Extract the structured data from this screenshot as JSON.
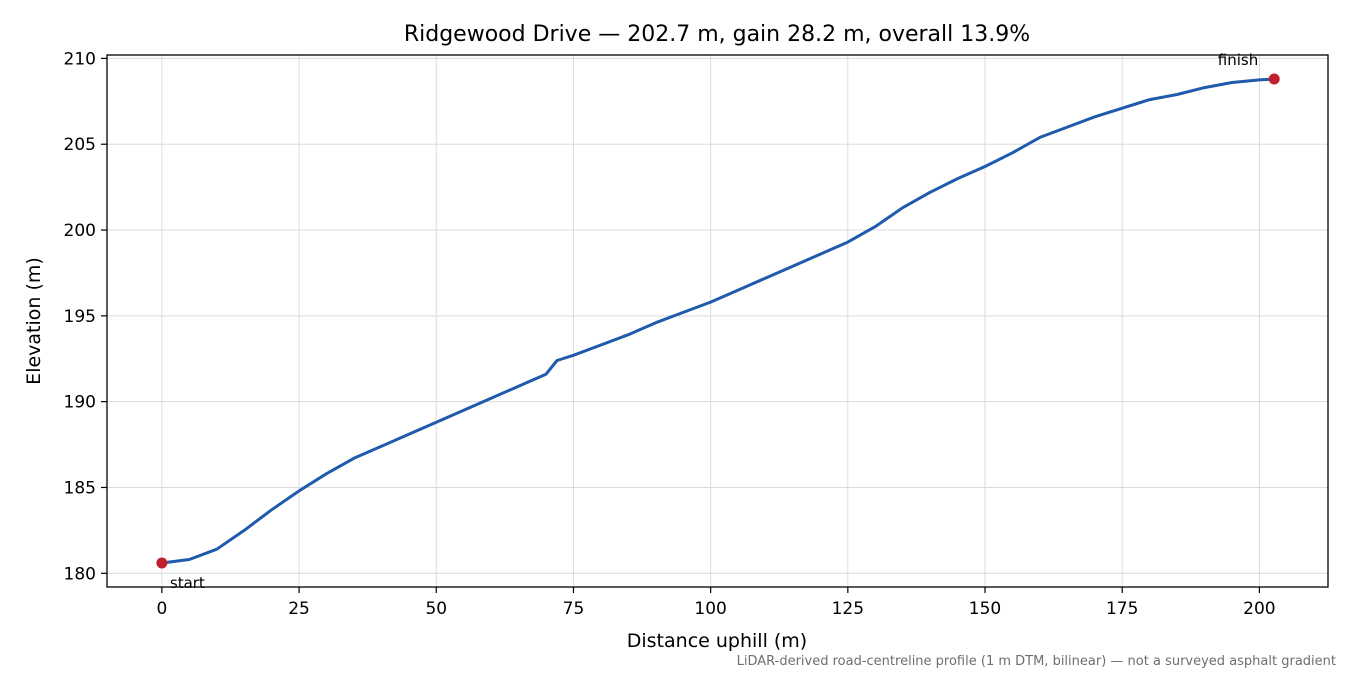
{
  "chart_data": {
    "type": "line",
    "title": "Ridgewood Drive — 202.7 m, gain 28.2 m, overall 13.9%",
    "xlabel": "Distance uphill (m)",
    "ylabel": "Elevation (m)",
    "xlim": [
      -10,
      212.5
    ],
    "ylim": [
      179.2,
      210.2
    ],
    "xticks": [
      0,
      25,
      50,
      75,
      100,
      125,
      150,
      175,
      200
    ],
    "yticks": [
      180,
      185,
      190,
      195,
      200,
      205,
      210
    ],
    "grid": true,
    "series": [
      {
        "color": "#1f5aad",
        "x": [
          0,
          5,
          10,
          15,
          20,
          25,
          30,
          35,
          40,
          45,
          50,
          55,
          60,
          65,
          70,
          72,
          75,
          80,
          85,
          90,
          95,
          100,
          105,
          110,
          115,
          120,
          125,
          130,
          135,
          140,
          145,
          150,
          155,
          160,
          165,
          170,
          175,
          180,
          185,
          190,
          195,
          200,
          202.7
        ],
        "y": [
          180.6,
          180.8,
          181.4,
          182.5,
          183.7,
          184.8,
          185.8,
          186.7,
          187.4,
          188.1,
          188.8,
          189.5,
          190.2,
          190.9,
          191.6,
          192.4,
          192.7,
          193.3,
          193.9,
          194.6,
          195.2,
          195.8,
          196.5,
          197.2,
          197.9,
          198.6,
          199.3,
          200.2,
          201.3,
          202.2,
          203.0,
          203.7,
          204.5,
          205.4,
          206.0,
          206.6,
          207.1,
          207.6,
          207.9,
          208.3,
          208.6,
          208.75,
          208.8
        ]
      }
    ],
    "markers": [
      {
        "x": 0,
        "y": 180.6,
        "label": "start",
        "color": "#c0202a"
      },
      {
        "x": 202.7,
        "y": 208.8,
        "label": "finish",
        "color": "#c0202a"
      }
    ],
    "footnote": "LiDAR-derived road-centreline profile (1 m DTM, bilinear) — not a surveyed asphalt gradient"
  }
}
